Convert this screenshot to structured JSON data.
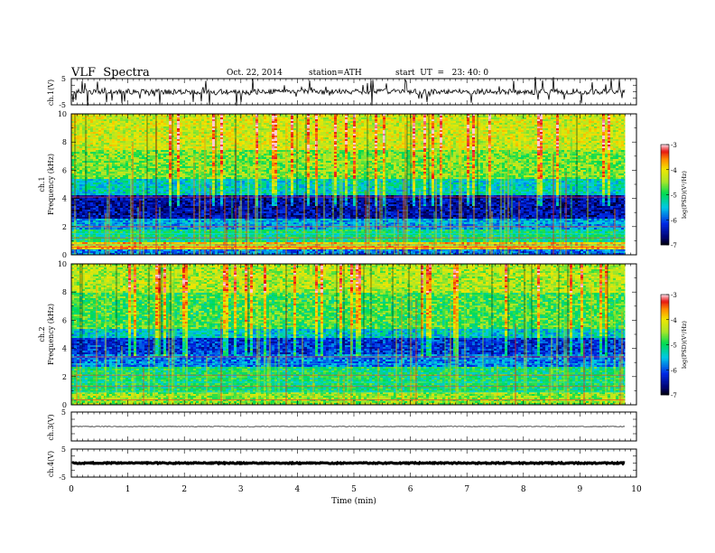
{
  "header": {
    "title": "VLF  Spectra",
    "date": "Oct. 22, 2014",
    "station": "station=ATH",
    "start_ut": "start  UT  =   23: 40: 0"
  },
  "chart_data": [
    {
      "type": "line",
      "name": "ch1-waveform",
      "ylabel": "ch.1(V)",
      "ylim": [
        -5,
        5
      ],
      "yticks": [
        "5",
        "-5"
      ],
      "xlim": [
        0,
        10
      ],
      "note_level": 0
    },
    {
      "type": "heatmap",
      "name": "ch1-spectrogram",
      "ylabel": "ch.1\nFrequency  (kHz)",
      "ylim": [
        0,
        10
      ],
      "yticks": [
        "0",
        "2",
        "4",
        "6",
        "8",
        "10"
      ],
      "xlim": [
        0,
        10
      ],
      "data_end_min": 9.8,
      "colorbar": {
        "label": "log(PSD)(V²/Hz)",
        "range": [
          -7,
          -3
        ],
        "ticks": [
          "-3",
          "-4",
          "-5",
          "-6",
          "-7"
        ]
      }
    },
    {
      "type": "heatmap",
      "name": "ch2-spectrogram",
      "ylabel": "ch.2\nFrequency  (kHz)",
      "ylim": [
        0,
        10
      ],
      "yticks": [
        "0",
        "2",
        "4",
        "6",
        "8",
        "10"
      ],
      "xlim": [
        0,
        10
      ],
      "data_end_min": 9.8,
      "colorbar": {
        "label": "log(PSD)(V²/Hz)",
        "range": [
          -7,
          -3
        ],
        "ticks": [
          "-3",
          "-4",
          "-5",
          "-6",
          "-7"
        ]
      }
    },
    {
      "type": "line",
      "name": "ch3-waveform",
      "ylabel": "ch.3(V)",
      "ylim": [
        -5,
        5
      ],
      "yticks": [
        "5"
      ],
      "xlim": [
        0,
        10
      ],
      "note_level": 0
    },
    {
      "type": "line",
      "name": "ch4-waveform",
      "ylabel": "ch.4(V)",
      "ylim": [
        -5,
        5
      ],
      "yticks": [
        "5",
        "-5"
      ],
      "xlim": [
        0,
        10
      ],
      "note_level": 0,
      "xlabel": "Time  (min)",
      "xticks": [
        "0",
        "1",
        "2",
        "3",
        "4",
        "5",
        "6",
        "7",
        "8",
        "9",
        "10"
      ]
    }
  ]
}
